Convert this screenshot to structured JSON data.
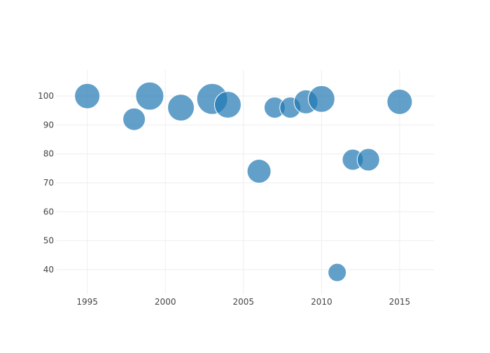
{
  "chart_data": {
    "type": "scatter",
    "title": "",
    "xlabel": "",
    "ylabel": "",
    "xlim": [
      1993,
      2017.2
    ],
    "ylim": [
      31.5,
      109
    ],
    "x_ticks": [
      1995,
      2000,
      2005,
      2010,
      2015
    ],
    "y_ticks": [
      40,
      50,
      60,
      70,
      80,
      90,
      100
    ],
    "grid": true,
    "marker_color": "#1f77b4",
    "marker_opacity": 0.7,
    "marker_outline": "#ffffff",
    "points": [
      {
        "x": 1995,
        "y": 100,
        "size": 36
      },
      {
        "x": 1998,
        "y": 92,
        "size": 32
      },
      {
        "x": 1999,
        "y": 100,
        "size": 40
      },
      {
        "x": 2001,
        "y": 96,
        "size": 38
      },
      {
        "x": 2003,
        "y": 99,
        "size": 44
      },
      {
        "x": 2004,
        "y": 97,
        "size": 38
      },
      {
        "x": 2006,
        "y": 74,
        "size": 34
      },
      {
        "x": 2007,
        "y": 96,
        "size": 30
      },
      {
        "x": 2008,
        "y": 96,
        "size": 30
      },
      {
        "x": 2009,
        "y": 98,
        "size": 34
      },
      {
        "x": 2010,
        "y": 99,
        "size": 38
      },
      {
        "x": 2011,
        "y": 39,
        "size": 26
      },
      {
        "x": 2012,
        "y": 78,
        "size": 30
      },
      {
        "x": 2013,
        "y": 78,
        "size": 32
      },
      {
        "x": 2015,
        "y": 98,
        "size": 36
      }
    ]
  }
}
